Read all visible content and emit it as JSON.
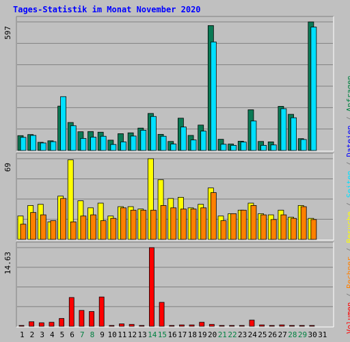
{
  "title": "Tages-Statistik im Monat November 2020",
  "legend": {
    "items": [
      {
        "label": "Volumen",
        "color": "#ff0000"
      },
      {
        "label": "Rechner",
        "color": "#ff8000"
      },
      {
        "label": "Besuche",
        "color": "#ffff00"
      },
      {
        "label": "Seiten",
        "color": "#00e0ff"
      },
      {
        "label": "Dateien",
        "color": "#0000ff"
      },
      {
        "label": "Anfragen",
        "color": "#008040"
      }
    ],
    "separator": " / "
  },
  "colors": {
    "hits": "#0a7a55",
    "files": "#0000ff",
    "pages": "#00e0ff",
    "visits": "#ffff00",
    "sites": "#ff8000",
    "volume": "#ff0000",
    "weekday_label": "#000000",
    "weekend_label": "#008040"
  },
  "chart_data": [
    {
      "type": "bar",
      "panel": "hits_files_pages",
      "ymax_label": "597",
      "ylim": [
        0,
        597
      ],
      "categories": [
        "1",
        "2",
        "3",
        "4",
        "5",
        "6",
        "7",
        "8",
        "9",
        "10",
        "11",
        "12",
        "13",
        "14",
        "15",
        "16",
        "17",
        "18",
        "19",
        "20",
        "21",
        "22",
        "23",
        "24",
        "25",
        "26",
        "27",
        "28",
        "29",
        "30",
        "31"
      ],
      "weekend": [
        false,
        false,
        false,
        false,
        false,
        false,
        true,
        true,
        false,
        false,
        false,
        false,
        false,
        true,
        true,
        false,
        false,
        false,
        false,
        false,
        true,
        true,
        false,
        false,
        false,
        false,
        false,
        true,
        true,
        false,
        false
      ],
      "series": [
        {
          "name": "Anfragen",
          "key": "hits",
          "values": [
            69,
            74,
            38,
            45,
            206,
            130,
            87,
            88,
            85,
            48,
            78,
            82,
            104,
            172,
            75,
            42,
            150,
            70,
            118,
            580,
            52,
            30,
            43,
            189,
            42,
            40,
            205,
            168,
            55,
            597,
            0
          ]
        },
        {
          "name": "Dateien",
          "key": "files",
          "values": [
            0,
            0,
            0,
            0,
            0,
            0,
            0,
            0,
            0,
            0,
            0,
            0,
            0,
            0,
            0,
            0,
            0,
            0,
            0,
            0,
            0,
            0,
            0,
            0,
            0,
            0,
            0,
            0,
            0,
            0,
            0
          ]
        },
        {
          "name": "Seiten",
          "key": "pages",
          "values": [
            61,
            70,
            35,
            41,
            250,
            115,
            56,
            62,
            66,
            28,
            40,
            67,
            94,
            158,
            66,
            30,
            109,
            49,
            90,
            504,
            29,
            24,
            39,
            137,
            24,
            26,
            194,
            152,
            51,
            573,
            0
          ]
        }
      ]
    },
    {
      "type": "bar",
      "panel": "visits_sites",
      "ymax_label": "69",
      "ylim": [
        0,
        69
      ],
      "categories": [
        "1",
        "2",
        "3",
        "4",
        "5",
        "6",
        "7",
        "8",
        "9",
        "10",
        "11",
        "12",
        "13",
        "14",
        "15",
        "16",
        "17",
        "18",
        "19",
        "20",
        "21",
        "22",
        "23",
        "24",
        "25",
        "26",
        "27",
        "28",
        "29",
        "30",
        "31"
      ],
      "series": [
        {
          "name": "Besuche",
          "key": "visits",
          "values": [
            20,
            29,
            30,
            15,
            37,
            68,
            33,
            27,
            31,
            20,
            28,
            28,
            26,
            69,
            51,
            35,
            36,
            27,
            30,
            44,
            20,
            22,
            25,
            31,
            22,
            21,
            25,
            19,
            29,
            18,
            0
          ]
        },
        {
          "name": "Rechner",
          "key": "sites",
          "values": [
            13,
            23,
            21,
            16,
            35,
            15,
            20,
            21,
            16,
            18,
            27,
            25,
            25,
            25,
            29,
            27,
            26,
            26,
            27,
            40,
            16,
            22,
            25,
            29,
            21,
            17,
            21,
            18,
            28,
            17,
            0
          ]
        }
      ]
    },
    {
      "type": "bar",
      "panel": "volume",
      "ymax_label": "14.63",
      "ylim": [
        0,
        14.63
      ],
      "categories": [
        "1",
        "2",
        "3",
        "4",
        "5",
        "6",
        "7",
        "8",
        "9",
        "10",
        "11",
        "12",
        "13",
        "14",
        "15",
        "16",
        "17",
        "18",
        "19",
        "20",
        "21",
        "22",
        "23",
        "24",
        "25",
        "26",
        "27",
        "28",
        "29",
        "30",
        "31"
      ],
      "series": [
        {
          "name": "Volumen",
          "key": "volume",
          "values": [
            0.15,
            0.85,
            0.65,
            0.75,
            1.45,
            5.35,
            2.95,
            2.75,
            5.45,
            0.15,
            0.45,
            0.35,
            0.15,
            14.63,
            4.45,
            0.15,
            0.25,
            0.25,
            0.75,
            0.35,
            0.15,
            0.15,
            0.15,
            1.15,
            0.25,
            0.15,
            0.25,
            0.15,
            0.15,
            0.15,
            0
          ]
        }
      ]
    }
  ]
}
